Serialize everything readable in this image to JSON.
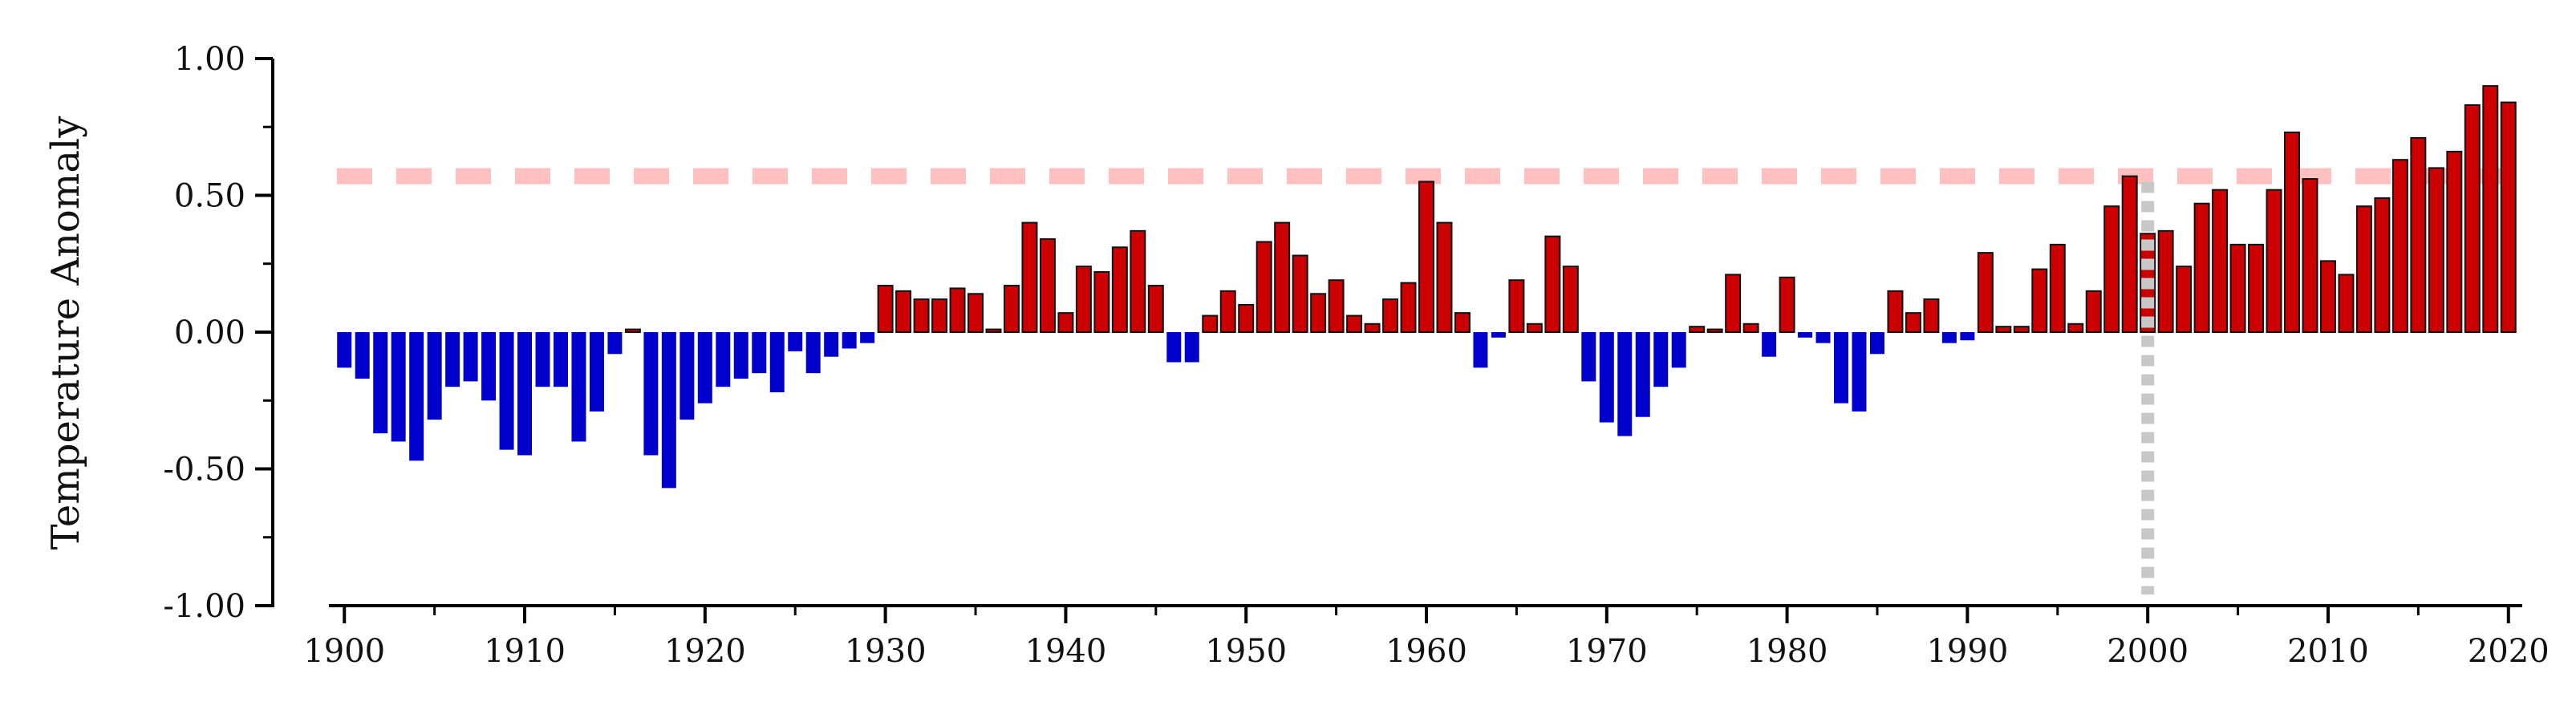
{
  "chart_data": {
    "type": "bar",
    "title": "",
    "xlabel": "",
    "ylabel": "Temperature Anomaly",
    "ylim": [
      -1.0,
      1.0
    ],
    "xlim": [
      1899.5,
      2020.5
    ],
    "yticks": [
      "1.00",
      "0.50",
      "0.00",
      "-0.50",
      "-1.00"
    ],
    "ytick_values": [
      1.0,
      0.5,
      0.0,
      -0.5,
      -1.0
    ],
    "xticks": [
      "1900",
      "1910",
      "1920",
      "1930",
      "1940",
      "1950",
      "1960",
      "1970",
      "1980",
      "1990",
      "2000",
      "2010",
      "2020"
    ],
    "xtick_values": [
      1900,
      1910,
      1920,
      1930,
      1940,
      1950,
      1960,
      1970,
      1980,
      1990,
      2000,
      2010,
      2020
    ],
    "grid": false,
    "colors": {
      "positive": "#cc0000",
      "negative": "#0000cc",
      "reference_line": "#ffc0c0",
      "marker_line": "#c8c8c8",
      "axis": "#000000"
    },
    "reference_line": {
      "y": 0.57,
      "style": "dashed"
    },
    "marker_line": {
      "x": 2000,
      "style": "dotted"
    },
    "series": [
      {
        "x": [
          1900,
          1901,
          1902,
          1903,
          1904,
          1905,
          1906,
          1907,
          1908,
          1909,
          1910,
          1911,
          1912,
          1913,
          1914,
          1915,
          1916,
          1917,
          1918,
          1919,
          1920,
          1921,
          1922,
          1923,
          1924,
          1925,
          1926,
          1927,
          1928,
          1929,
          1930,
          1931,
          1932,
          1933,
          1934,
          1935,
          1936,
          1937,
          1938,
          1939,
          1940,
          1941,
          1942,
          1943,
          1944,
          1945,
          1946,
          1947,
          1948,
          1949,
          1950,
          1951,
          1952,
          1953,
          1954,
          1955,
          1956,
          1957,
          1958,
          1959,
          1960,
          1961,
          1962,
          1963,
          1964,
          1965,
          1966,
          1967,
          1968,
          1969,
          1970,
          1971,
          1972,
          1973,
          1974,
          1975,
          1976,
          1977,
          1978,
          1979,
          1980,
          1981,
          1982,
          1983,
          1984,
          1985,
          1986,
          1987,
          1988,
          1989,
          1990,
          1991,
          1992,
          1993,
          1994,
          1995,
          1996,
          1997,
          1998,
          1999,
          2000,
          2001,
          2002,
          2003,
          2004,
          2005,
          2006,
          2007,
          2008,
          2009,
          2010,
          2011,
          2012,
          2013,
          2014,
          2015,
          2016,
          2017,
          2018,
          2019,
          2020
        ],
        "values": [
          -0.13,
          -0.17,
          -0.37,
          -0.4,
          -0.47,
          -0.32,
          -0.2,
          -0.18,
          -0.25,
          -0.43,
          -0.45,
          -0.2,
          -0.2,
          -0.4,
          -0.29,
          -0.08,
          0.01,
          -0.45,
          -0.57,
          -0.32,
          -0.26,
          -0.2,
          -0.17,
          -0.15,
          -0.22,
          -0.07,
          -0.15,
          -0.09,
          -0.06,
          -0.04,
          0.17,
          0.15,
          0.12,
          0.12,
          0.16,
          0.14,
          0.01,
          0.17,
          0.4,
          0.34,
          0.07,
          0.24,
          0.22,
          0.31,
          0.37,
          0.17,
          -0.11,
          -0.11,
          0.06,
          0.15,
          0.1,
          0.33,
          0.4,
          0.28,
          0.14,
          0.19,
          0.06,
          0.03,
          0.12,
          0.18,
          0.55,
          0.4,
          0.07,
          -0.13,
          -0.02,
          0.19,
          0.03,
          0.35,
          0.24,
          -0.18,
          -0.33,
          -0.38,
          -0.31,
          -0.2,
          -0.13,
          0.02,
          0.01,
          0.21,
          0.03,
          -0.09,
          0.2,
          -0.02,
          -0.04,
          -0.26,
          -0.29,
          -0.08,
          0.15,
          0.07,
          0.12,
          -0.04,
          -0.03,
          0.29,
          0.02,
          0.02,
          0.23,
          0.32,
          0.03,
          0.15,
          0.46,
          0.57,
          0.36,
          0.37,
          0.24,
          0.47,
          0.52,
          0.32,
          0.32,
          0.52,
          0.73,
          0.56,
          0.26,
          0.21,
          0.46,
          0.49,
          0.63,
          0.71,
          0.6,
          0.66,
          0.83,
          0.9,
          0.84
        ]
      }
    ]
  }
}
